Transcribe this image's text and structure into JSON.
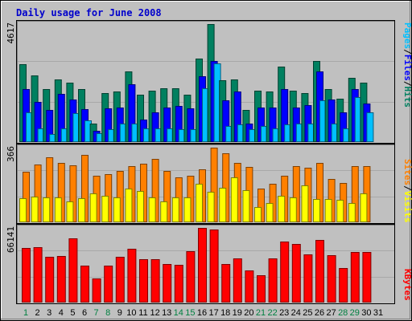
{
  "title": "Daily usage for June 2008",
  "colors": {
    "background": "#c0c0c0",
    "title": "#0000cc",
    "hits": "#008060",
    "files": "#0000ff",
    "pages": "#00c0ff",
    "visits": "#ffff00",
    "sites": "#ff8000",
    "kbytes": "#ff0000",
    "weekday_label": "#000000",
    "weekend_label": "#008040"
  },
  "chart_data": [
    {
      "type": "bar",
      "title": "Daily usage for June 2008",
      "categories": [
        "1",
        "2",
        "3",
        "4",
        "5",
        "6",
        "7",
        "8",
        "9",
        "10",
        "11",
        "12",
        "13",
        "14",
        "15",
        "16",
        "17",
        "18",
        "19",
        "20",
        "21",
        "22",
        "23",
        "24",
        "25",
        "26",
        "27",
        "28",
        "29",
        "30",
        "31"
      ],
      "weekend_days": [
        "1",
        "7",
        "8",
        "14",
        "15",
        "21",
        "22",
        "28",
        "29"
      ],
      "ylabel_parts": [
        "Pages",
        "Files",
        "Hits"
      ],
      "ymax_label": "4617",
      "ylim": [
        0,
        4617
      ],
      "series": [
        {
          "name": "Hits",
          "values": [
            3050,
            2600,
            2050,
            2450,
            2300,
            2050,
            680,
            1900,
            1950,
            2750,
            1830,
            2000,
            2100,
            2100,
            1830,
            3250,
            4617,
            2400,
            2420,
            1220,
            2000,
            1950,
            2950,
            2000,
            1900,
            3150,
            2050,
            1680,
            2500,
            2300,
            0
          ]
        },
        {
          "name": "Files",
          "values": [
            2050,
            1550,
            1230,
            1850,
            1650,
            1250,
            420,
            1300,
            1330,
            2250,
            850,
            1150,
            1320,
            1400,
            1300,
            2550,
            3150,
            1600,
            1950,
            700,
            1330,
            1330,
            2050,
            1330,
            1430,
            2750,
            1630,
            1150,
            2050,
            1480,
            0
          ]
        },
        {
          "name": "Pages",
          "values": [
            1150,
            520,
            300,
            520,
            1100,
            820,
            330,
            480,
            700,
            680,
            520,
            520,
            500,
            480,
            480,
            2100,
            3080,
            600,
            650,
            480,
            600,
            520,
            650,
            700,
            700,
            1620,
            680,
            520,
            1750,
            1150,
            0
          ]
        }
      ]
    },
    {
      "type": "bar",
      "categories": [
        "1",
        "2",
        "3",
        "4",
        "5",
        "6",
        "7",
        "8",
        "9",
        "10",
        "11",
        "12",
        "13",
        "14",
        "15",
        "16",
        "17",
        "18",
        "19",
        "20",
        "21",
        "22",
        "23",
        "24",
        "25",
        "26",
        "27",
        "28",
        "29",
        "30",
        "31"
      ],
      "ylabel_parts": [
        "Sites",
        "Visits"
      ],
      "ymax_label": "366",
      "ylim": [
        0,
        366
      ],
      "series": [
        {
          "name": "Sites",
          "values": [
            246,
            283,
            319,
            290,
            280,
            330,
            228,
            233,
            250,
            276,
            286,
            310,
            250,
            218,
            228,
            260,
            366,
            339,
            290,
            270,
            165,
            188,
            225,
            276,
            266,
            290,
            210,
            190,
            274,
            276,
            0
          ]
        },
        {
          "name": "Visits",
          "values": [
            116,
            122,
            120,
            120,
            100,
            114,
            140,
            128,
            118,
            164,
            150,
            120,
            100,
            120,
            118,
            188,
            148,
            168,
            218,
            156,
            72,
            92,
            126,
            120,
            180,
            112,
            112,
            108,
            92,
            140,
            0
          ]
        }
      ]
    },
    {
      "type": "bar",
      "categories": [
        "1",
        "2",
        "3",
        "4",
        "5",
        "6",
        "7",
        "8",
        "9",
        "10",
        "11",
        "12",
        "13",
        "14",
        "15",
        "16",
        "17",
        "18",
        "19",
        "20",
        "21",
        "22",
        "23",
        "24",
        "25",
        "26",
        "27",
        "28",
        "29",
        "30",
        "31"
      ],
      "ylabel_parts": [
        "KBytes"
      ],
      "ymax_label": "66141",
      "ylim": [
        0,
        66141
      ],
      "series": [
        {
          "name": "KBytes",
          "values": [
            48000,
            49000,
            40000,
            41000,
            56500,
            32000,
            21000,
            32000,
            40000,
            47500,
            38000,
            38000,
            34000,
            33000,
            45000,
            66141,
            65000,
            34000,
            38500,
            28000,
            24000,
            39000,
            54000,
            51500,
            42500,
            55000,
            42000,
            30500,
            44500,
            44500,
            0
          ]
        }
      ]
    }
  ]
}
